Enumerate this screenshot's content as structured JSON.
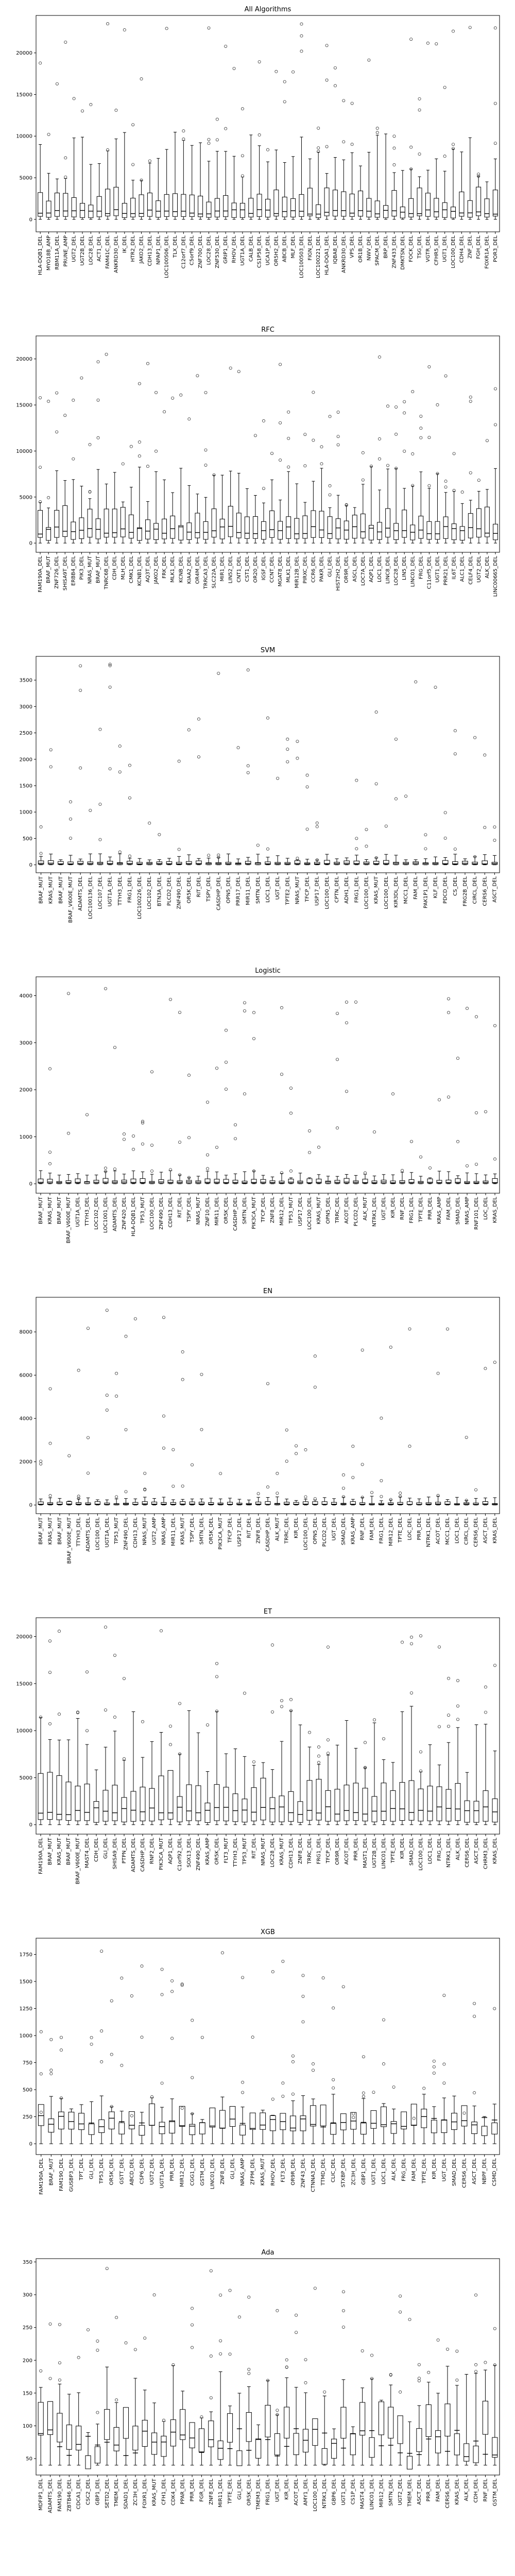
{
  "figure": {
    "background": "#ffffff",
    "box_color": "#000000",
    "flier_color": "#333333"
  },
  "chart_data": [
    {
      "type": "box",
      "title": "All Algorithms",
      "ylim": [
        -1500,
        24500
      ],
      "yticks": [
        0,
        5000,
        10000,
        15000,
        20000
      ],
      "categories": [
        "HLA-DQB1_DEL",
        "MYO18B_AMP",
        "RBM11A_DEL",
        "PRUNE_AMP",
        "UGT2_DEL",
        "UGT2B_DEL",
        "LOC28_DEL",
        "ACT1_DEL",
        "FAM41C_DEL",
        "ANKRD30_DEL",
        "IK_DEL",
        "HTR2_DEL",
        "JAKO2_DEL",
        "CDH13_DEL",
        "NPAP1_DEL",
        "LOC100506_DEL",
        "TLX_DEL",
        "C12orf7_DEL",
        "C5orf9_DEL",
        "ZNF700_DEL",
        "LOC28_DEL",
        "ZNF530_DEL",
        "GRIP1_DEL",
        "RHOV_DEL",
        "UGT1A_DEL",
        "CALB_DEL",
        "CS1P58_DEL",
        "UCA1P_DEL",
        "OR5H2_DEL",
        "ABCB_DEL",
        "MLF_DEL",
        "LOC100503_DEL",
        "FIGN_DEL",
        "LOC100221_DEL",
        "HLA-DQA1_DEL",
        "IQBA8_DEL",
        "ANKRD30_DEL",
        "VPS_DEL",
        "OR1B_DEL",
        "NWV_DEL",
        "SPACM_DEL",
        "BRP_DEL",
        "ZNF433_DEL",
        "DMKTSN_DEL",
        "FOCK_DEL",
        "TSG_DEL",
        "VGTR_DEL",
        "CFHR5_DEL",
        "UGT1_DEL",
        "LOC100_DEL",
        "CDH4_DEL",
        "ZNF_DEL",
        "FGH_DEL",
        "FOXR1A_DEL",
        "POR3_DEL"
      ],
      "summary": {
        "whisker_low": 0,
        "box_low": 300,
        "median": 900,
        "box_high": 2700,
        "whisker_high": 7500,
        "flier_max": 23500
      }
    },
    {
      "type": "box",
      "title": "RFC",
      "ylim": [
        -1000,
        22500
      ],
      "yticks": [
        0,
        5000,
        10000,
        15000,
        20000
      ],
      "categories": [
        "FAM190A_DEL",
        "BRAF_MUT",
        "ZNF726_DEL",
        "SHISA9T_DEL",
        "ERBB4_DEL",
        "PIK3_DEL",
        "NRAS_MUT",
        "BRAF_MUT",
        "TNRC6B_DEL",
        "CDH_DEL",
        "MLH_DEL",
        "CMK1_DEL",
        "KCNB1_DEL",
        "AQ3T_DEL",
        "JAKO2_DEL",
        "FRK_DEL",
        "MLK1_DEL",
        "KCNB_DEL",
        "KIAA2_DEL",
        "OR4M_DEL",
        "TRRCA3_DEL",
        "SLC22A_DEL",
        "MIR1_DEL",
        "LIN52_DEL",
        "CNT1_DEL",
        "CST1_DEL",
        "OR20_DEL",
        "IGSF_DEL",
        "CCNT_DEL",
        "MGAT8_DEL",
        "MLK1_DEL",
        "MIR12B_DEL",
        "PIRXC_DEL",
        "CCR6_DEL",
        "PAKR_DEL",
        "GLI_DEL",
        "HIST2H2_DEL",
        "OR9R_DEL",
        "ASCL_DEL",
        "LOC7A_DEL",
        "AQP1_DEL",
        "LOC1_DEL",
        "LINC8_DEL",
        "LOC28_DEL",
        "LIN5_DEL",
        "LINC01_DEL",
        "FRG_DEL",
        "C11orf5_DEL",
        "UGT1_DEL",
        "PRR21_DEL",
        "IL6T_DEL",
        "ALC1_DEL",
        "CELF4_DEL",
        "UGT2_DEL",
        "ALK_DEL",
        "LINC00665_DEL"
      ],
      "summary": {
        "whisker_low": 0,
        "box_low": 500,
        "median": 1400,
        "box_high": 2900,
        "whisker_high": 6000,
        "flier_max": 20500
      }
    },
    {
      "type": "box",
      "title": "SVM",
      "ylim": [
        -150,
        3950
      ],
      "yticks": [
        0,
        500,
        1000,
        1500,
        2000,
        2500,
        3000,
        3500
      ],
      "categories": [
        "BRAF_MUT",
        "KRAS_MUT",
        "BRAF_MUT",
        "BRAF_V600E_MUT",
        "ADAMTS_DEL",
        "LOC100136_DEL",
        "LOC107_DEL",
        "UGT1A_DEL",
        "TTYH3_DEL",
        "FRG1_DEL",
        "LOC100226_DEL",
        "LOC102_DEL",
        "BTN3A_DEL",
        "PLCD2_DEL",
        "ZNF490_DEL",
        "OR5K_DEL",
        "RIT_DEL",
        "TSPY_DEL",
        "CASDHP_DEL",
        "OPN5_DEL",
        "PRR17_DEL",
        "MIR11_DEL",
        "SMTN_DEL",
        "LOC1_DEL",
        "UGT_DEL",
        "TPTE2_DEL",
        "NRAS_MUT",
        "TFCP_DEL",
        "USP17_DEL",
        "LOC100_DEL",
        "CPTN_DEL",
        "ADH1_DEL",
        "FRG1_DEL",
        "LOC100_DEL",
        "KRAS_MUT",
        "LOC100_DEL",
        "KIR3DL_DEL",
        "MCC1_DEL",
        "FAM_DEL",
        "PAK1P1_DEL",
        "KLF_DEL",
        "PDCD_DEL",
        "CS_DEL",
        "FRG2B_DEL",
        "CIRCL_DEL",
        "CERS6_DEL",
        "ASCT_DEL"
      ],
      "summary": {
        "whisker_low": 0,
        "box_low": 8,
        "median": 25,
        "box_high": 60,
        "whisker_high": 150,
        "flier_max": 3800
      }
    },
    {
      "type": "box",
      "title": "Logistic",
      "ylim": [
        -200,
        4400
      ],
      "yticks": [
        0,
        1000,
        2000,
        3000,
        4000
      ],
      "categories": [
        "BRAF_MUT",
        "KRAS_MUT",
        "BRAF_MUT",
        "BRAF_V600E_MUT",
        "UGT1A_DEL",
        "TTYH3_DEL",
        "LOC102_DEL",
        "LOC1001_DEL",
        "ADAMTS_DEL",
        "ZNF420_DEL",
        "HLA-DQB1_DEL",
        "TP53_MUT",
        "LOC100_DEL",
        "ZNF490_DEL",
        "CDH13_DEL",
        "RIT_DEL",
        "TSPY_DEL",
        "NRAS_MUT",
        "ZNF10_DEL",
        "MIR11_DEL",
        "OR5K_DEL",
        "CASDHP_DEL",
        "SMTN_DEL",
        "PIK3CA_MUT",
        "TFCP_DEL",
        "ZNF8_DEL",
        "MIR12_DEL",
        "TP53_MUT",
        "USP17_DEL",
        "LOC100_DEL",
        "KRAS_MUT",
        "OPN5_DEL",
        "TRRC_DEL",
        "ACOT_DEL",
        "PLCD2_DEL",
        "ALK_MUT",
        "NTRK1_DEL",
        "UGT_DEL",
        "KIR_DEL",
        "RNF_DEL",
        "FRG1_DEL",
        "TPTE_DEL",
        "PRR_DEL",
        "KRAS_AMP",
        "FAM_DEL",
        "SMAD_DEL",
        "NRAS_AMP",
        "RNF101_DEL",
        "LOC_DEL",
        "KRAS_DEL"
      ],
      "summary": {
        "whisker_low": 0,
        "box_low": 10,
        "median": 30,
        "box_high": 80,
        "whisker_high": 200,
        "flier_max": 4150
      }
    },
    {
      "type": "box",
      "title": "EN",
      "ylim": [
        -400,
        9600
      ],
      "yticks": [
        0,
        2000,
        4000,
        6000,
        8000
      ],
      "categories": [
        "BRAF_MUT",
        "KRAS_MUT",
        "BRAF_MUT",
        "BRAF_V600E_MUT",
        "TTYH3_DEL",
        "ADAMTS_DEL",
        "LOC100_DEL",
        "UGT1A_DEL",
        "TP53_MUT",
        "ZNF490_DEL",
        "CDH13_DEL",
        "NRAS_MUT",
        "UGT2_AMP",
        "NRAS_AMP",
        "MIR11_DEL",
        "KRAS_MUT",
        "TSPY_DEL",
        "SMTN_DEL",
        "OR5K_DEL",
        "PIK3CA_MUT",
        "TFCP_DEL",
        "USP17_DEL",
        "RIT_DEL",
        "ZNF8_DEL",
        "CASDHP_DEL",
        "ALK_MUT",
        "TRRC_DEL",
        "KIR_DEL",
        "LOC100_DEL",
        "OPN5_DEL",
        "PLCD2_DEL",
        "UGT_DEL",
        "SMAD_DEL",
        "KRAS_AMP",
        "RNF_DEL",
        "FAM_DEL",
        "FRG1_DEL",
        "MIR12_DEL",
        "TPTE_DEL",
        "LOC_DEL",
        "PRR_DEL",
        "NTRK1_DEL",
        "ACOT_DEL",
        "MCC1_DEL",
        "LOC1_DEL",
        "CIRCL_DEL",
        "CERS6_DEL",
        "ASCT_DEL",
        "KRAS_DEL"
      ],
      "summary": {
        "whisker_low": 0,
        "box_low": 15,
        "median": 40,
        "box_high": 110,
        "whisker_high": 300,
        "flier_max": 9000
      }
    },
    {
      "type": "box",
      "title": "ET",
      "ylim": [
        -1000,
        22000
      ],
      "yticks": [
        0,
        5000,
        10000,
        15000,
        20000
      ],
      "categories": [
        "FAM190A_DEL",
        "BRAF_MUT",
        "KRAS_MUT",
        "BRAF_MUT",
        "BRAF_V600E_MUT",
        "MAST4_DEL",
        "CDH_DEL",
        "GLI_DEL",
        "SHISA9_DEL",
        "PTPN_DEL",
        "ADAMTS_DEL",
        "CASDHP_DEL",
        "RNF2_DEL",
        "PIK3CA_MUT",
        "AQP1_DEL",
        "C1orf92_DEL",
        "SOX13_DEL",
        "ZNF490_DEL",
        "KRAS_AMP",
        "OR5K_DEL",
        "FLT3_MUT",
        "TTYH3_DEL",
        "TP53_MUT",
        "RIT_DEL",
        "NRAS_MUT",
        "LOC28_DEL",
        "KRAS_MUT",
        "CDH13_DEL",
        "ZNF8_DEL",
        "TRRC_DEL",
        "FRG1_DEL",
        "TFCP_DEL",
        "OR9R_DEL",
        "ACOT_DEL",
        "PRR_DEL",
        "MAST1_DEL",
        "UGT2B_DEL",
        "LINC01_DEL",
        "TPTE_DEL",
        "KIR_DEL",
        "SMAD_DEL",
        "LOC100_DEL",
        "LOC1_DEL",
        "FRG_DEL",
        "NTRK1_DEL",
        "ALK_DEL",
        "CERS6_DEL",
        "ASCT_DEL",
        "CHRM3_DEL",
        "KRAS_DEL"
      ],
      "summary": {
        "whisker_low": 0,
        "box_low": 400,
        "median": 1500,
        "box_high": 4000,
        "whisker_high": 9000,
        "flier_max": 21000
      }
    },
    {
      "type": "box",
      "title": "XGB",
      "ylim": [
        -100,
        1900
      ],
      "yticks": [
        0,
        250,
        500,
        750,
        1000,
        1250,
        1500,
        1750
      ],
      "categories": [
        "FAM190A_DEL",
        "BRAF_MUT",
        "FAM190_DEL",
        "GUSBP3_DEL",
        "TPT_DEL",
        "GLI_DEL",
        "TP53_DEL",
        "OR5K_DEL",
        "GSTT_DEL",
        "ABCD_DEL",
        "CSP6_DEL",
        "UGT2_DEL",
        "UGT1A_DEL",
        "PRR_DEL",
        "MIR12_DEL",
        "CGG1_DEL",
        "GSTM_DEL",
        "LINC01_DEL",
        "ZNF8_DEL",
        "GLI_DEL",
        "NRAS_AMP",
        "ZFPM_DEL",
        "KRAS_MUT",
        "RHOV_DEL",
        "FLT3_DEL",
        "OR9R_DEL",
        "ZNF43_DEL",
        "CTNNA3_DEL",
        "TTMD_DEL",
        "CLIC_DEL",
        "STXBP_DEL",
        "ZC3H_DEL",
        "GBP1_DEL",
        "UGT1_DEL",
        "LOC1_DEL",
        "ALK_DEL",
        "FRG_DEL",
        "FAM_DEL",
        "TPTE_DEL",
        "KIR_DEL",
        "UGT_DEL",
        "SMAD_DEL",
        "CERS6_DEL",
        "ASCT_DEL",
        "NBPF_DEL",
        "CSMD_DEL"
      ],
      "summary": {
        "whisker_low": 0,
        "box_low": 120,
        "median": 200,
        "box_high": 260,
        "whisker_high": 330,
        "flier_max": 1780
      }
    },
    {
      "type": "box",
      "title": "Ada",
      "ylim": [
        25,
        355
      ],
      "yticks": [
        50,
        100,
        150,
        200,
        250,
        300,
        350
      ],
      "categories": [
        "MDFIP1_DEL",
        "ADAMTS_DEL",
        "FAM190_DEL",
        "ZBTB46_DEL",
        "CDCA1_DEL",
        "CSC2_DEL",
        "GBP1_DEL",
        "SETD2_DEL",
        "TMEM_DEL",
        "SDAD1_DEL",
        "ZC3H_DEL",
        "FOXR1_DEL",
        "KRAS_MUT",
        "CFH1_DEL",
        "CDK4_DEL",
        "PPAR_DEL",
        "PRR_DEL",
        "FGR_DEL",
        "ZNF8_DEL",
        "MIR11_DEL",
        "TPTE_DEL",
        "GLI_DEL",
        "OR5K_DEL",
        "TMEM3_DEL",
        "FRG1_DEL",
        "UGT_DEL",
        "KIR_DEL",
        "ACOT_DEL",
        "AMY1_DEL",
        "LOC100_DEL",
        "NTRK1_DEL",
        "GBP6_DEL",
        "UGT1_DEL",
        "CS1P_DEL",
        "MAST4_DEL",
        "LINC01_DEL",
        "MIR12_DEL",
        "SMTN_DEL",
        "UGT2_DEL",
        "TMEM_DEL",
        "ASCT_DEL",
        "PRR_DEL",
        "FAM_DEL",
        "CERS6_DEL",
        "KRAS_DEL",
        "ALK_DEL",
        "CDH_DEL",
        "RNF_DEL",
        "GSTM_DEL"
      ],
      "summary": {
        "whisker_low": 40,
        "box_low": 60,
        "median": 75,
        "box_high": 95,
        "whisker_high": 140,
        "flier_max": 340
      }
    }
  ]
}
